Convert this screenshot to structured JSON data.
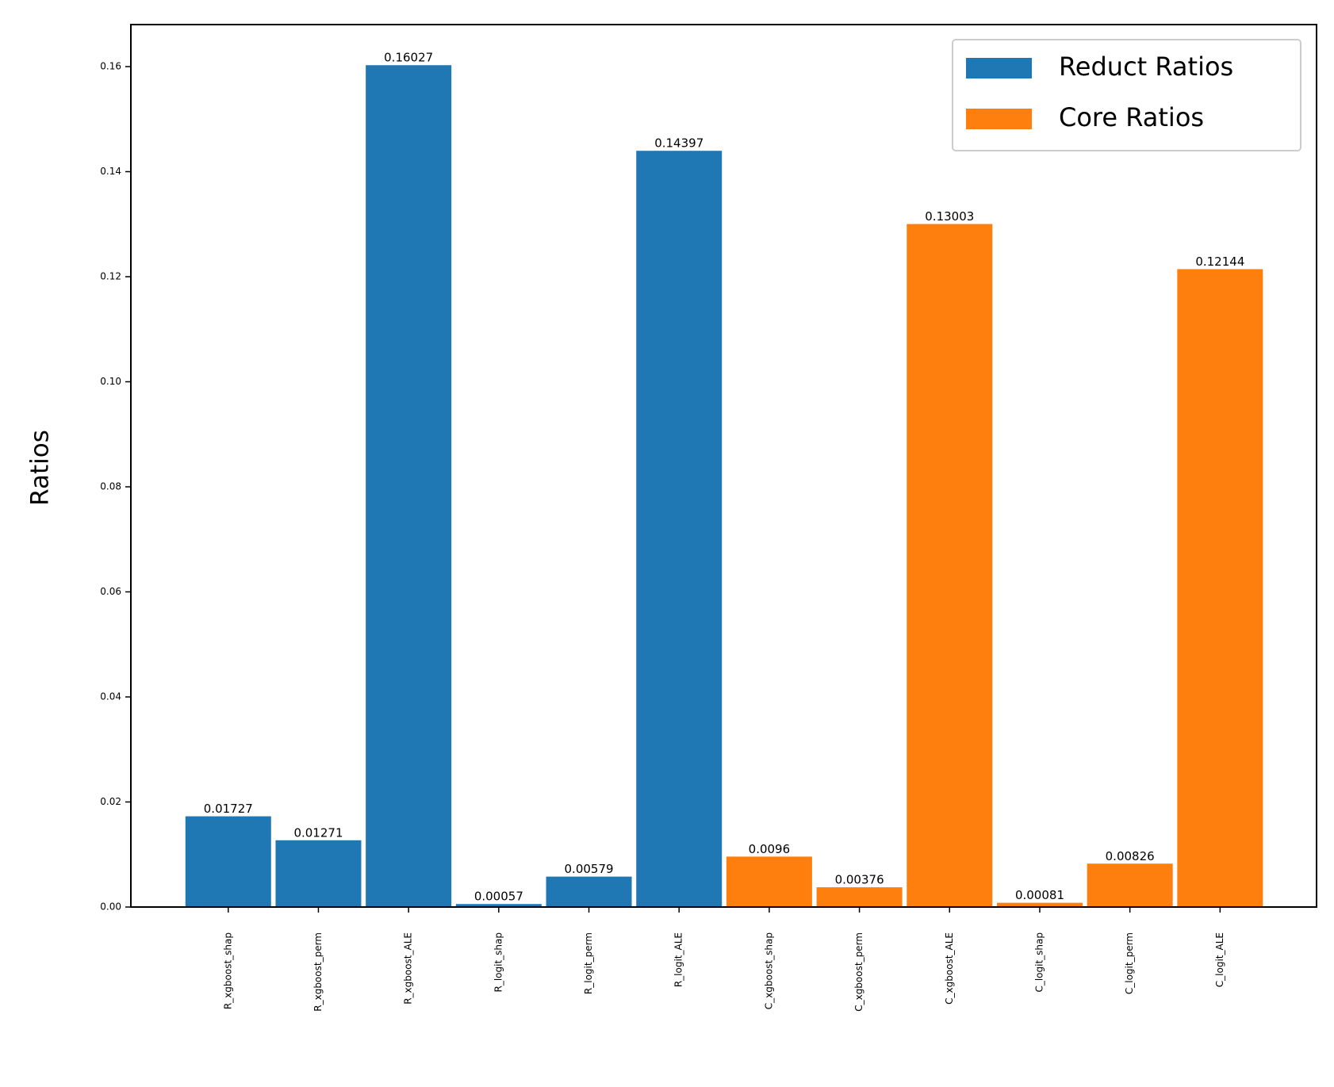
{
  "chart_data": {
    "type": "bar",
    "categories": [
      "R_xgboost_shap",
      "R_xgboost_perm",
      "R_xgboost_ALE",
      "R_logit_shap",
      "R_logit_perm",
      "R_logit_ALE",
      "C_xgboost_shap",
      "C_xgboost_perm",
      "C_xgboost_ALE",
      "C_logit_shap",
      "C_logit_perm",
      "C_logit_ALE"
    ],
    "series": [
      {
        "name": "Reduct Ratios",
        "color": "#1f77b4",
        "values": [
          0.01727,
          0.01271,
          0.16027,
          0.00057,
          0.00579,
          0.14397,
          null,
          null,
          null,
          null,
          null,
          null
        ]
      },
      {
        "name": "Core Ratios",
        "color": "#ff7f0e",
        "values": [
          null,
          null,
          null,
          null,
          null,
          null,
          0.0096,
          0.00376,
          0.13003,
          0.00081,
          0.00826,
          0.12144
        ]
      }
    ],
    "y_label": "Ratios",
    "ylim": [
      0,
      0.168
    ],
    "yticks": [
      {
        "value": 0,
        "label": "0.00"
      },
      0.02,
      0.04,
      0.06,
      0.08,
      {
        "value": 0.1,
        "label": "0.10"
      },
      0.12,
      0.14,
      0.16
    ],
    "legend": "upper right",
    "grid": false
  }
}
